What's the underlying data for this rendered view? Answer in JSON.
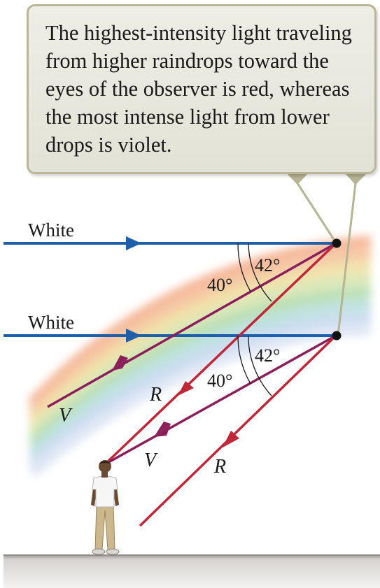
{
  "callout": {
    "text": "The highest-intensity light traveling from higher raindrops toward the eyes of the observer is red, whereas the most intense light from lower drops is violet."
  },
  "rays": {
    "upper_label": "White",
    "lower_label": "White"
  },
  "angles": {
    "upper_violet": "40°",
    "upper_red": "42°",
    "lower_violet": "40°",
    "lower_red": "42°"
  },
  "colors": {
    "labels": {
      "upper_v": "V",
      "upper_r": "R",
      "lower_v": "V",
      "lower_r": "R"
    }
  },
  "palette": {
    "white_ray": "#1f5ea8",
    "violet_ray": "#8a1f5a",
    "red_ray": "#c0283a",
    "callout_border": "#b9b795",
    "ground": "#8f8a86"
  }
}
